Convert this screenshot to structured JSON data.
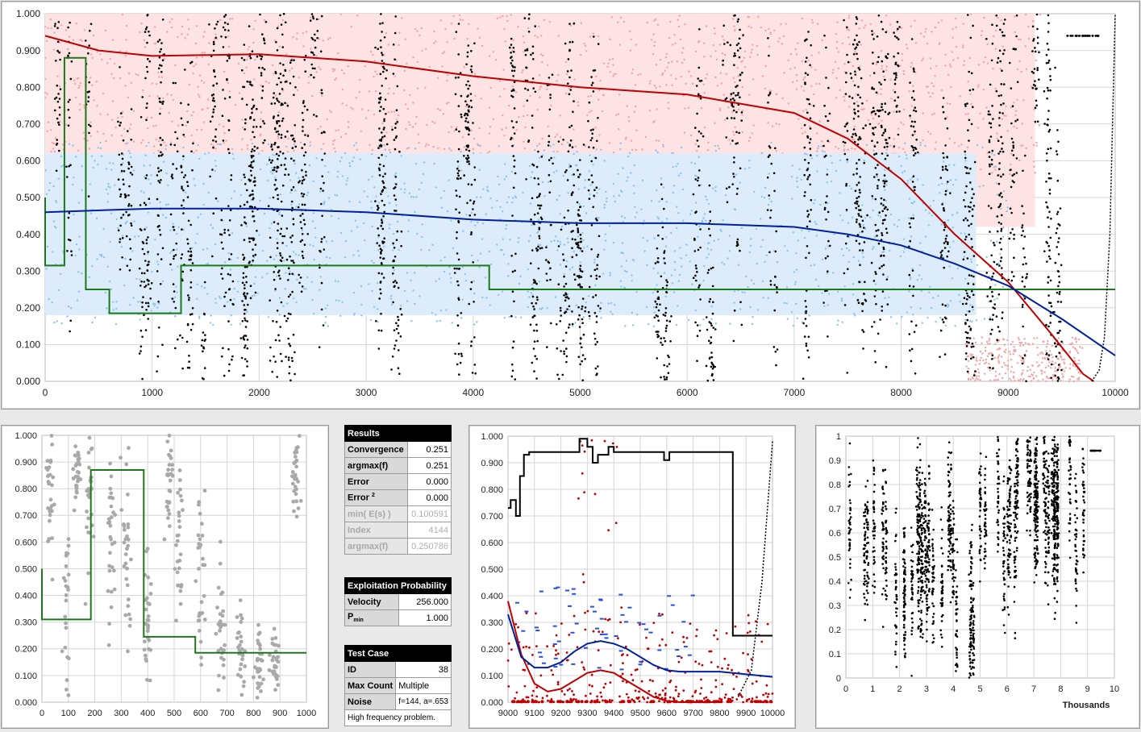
{
  "chart_data": [
    {
      "type": "scatter",
      "xlim": [
        0,
        10000
      ],
      "ylim": [
        0,
        1
      ],
      "x_ticks": [
        "0",
        "1000",
        "2000",
        "3000",
        "4000",
        "5000",
        "6000",
        "7000",
        "8000",
        "9000",
        "10000"
      ],
      "y_ticks": [
        "0.000",
        "0.100",
        "0.200",
        "0.300",
        "0.400",
        "0.500",
        "0.600",
        "0.700",
        "0.800",
        "0.900",
        "1.000"
      ],
      "series": [
        {
          "role": "red-trend",
          "color": "#c00000",
          "x": [
            0,
            500,
            1000,
            2000,
            3000,
            4000,
            5000,
            6000,
            7000,
            7500,
            8000,
            8500,
            9000,
            9400,
            9700,
            9800
          ],
          "y": [
            0.94,
            0.9,
            0.885,
            0.89,
            0.87,
            0.83,
            0.8,
            0.78,
            0.73,
            0.66,
            0.55,
            0.4,
            0.27,
            0.13,
            0.02,
            0
          ]
        },
        {
          "role": "blue-trend",
          "color": "#0020a0",
          "x": [
            0,
            1000,
            2000,
            3000,
            4000,
            5000,
            6000,
            7000,
            7500,
            8000,
            8500,
            9000,
            9500,
            10000
          ],
          "y": [
            0.46,
            0.47,
            0.47,
            0.46,
            0.44,
            0.43,
            0.43,
            0.42,
            0.4,
            0.37,
            0.32,
            0.26,
            0.17,
            0.07
          ]
        },
        {
          "role": "green-step",
          "color": "#1a7a1a",
          "x": [
            0,
            0,
            180,
            180,
            380,
            380,
            600,
            600,
            1270,
            1270,
            4150,
            4150,
            10000
          ],
          "y": [
            0.5,
            0.315,
            0.315,
            0.88,
            0.88,
            0.25,
            0.25,
            0.185,
            0.185,
            0.315,
            0.315,
            0.25,
            0.25
          ]
        },
        {
          "role": "black-ramp",
          "color": "#000000",
          "x": [
            9780,
            9850,
            9900,
            9950,
            10000
          ],
          "y": [
            0,
            0.03,
            0.12,
            0.4,
            1.0
          ]
        }
      ]
    },
    {
      "type": "scatter",
      "xlim": [
        0,
        1000
      ],
      "ylim": [
        0,
        1
      ],
      "x_ticks": [
        "0",
        "100",
        "200",
        "300",
        "400",
        "500",
        "600",
        "700",
        "800",
        "900",
        "1000"
      ],
      "y_ticks": [
        "0.000",
        "0.100",
        "0.200",
        "0.300",
        "0.400",
        "0.500",
        "0.600",
        "0.700",
        "0.800",
        "0.900",
        "1.000"
      ],
      "series": [
        {
          "role": "green-step",
          "color": "#1a7a1a",
          "x": [
            0,
            0,
            185,
            185,
            385,
            385,
            580,
            580,
            1000
          ],
          "y": [
            0.5,
            0.31,
            0.31,
            0.87,
            0.87,
            0.245,
            0.245,
            0.185,
            0.185
          ]
        }
      ]
    },
    {
      "type": "line",
      "xlim": [
        9000,
        10000
      ],
      "ylim": [
        0,
        1
      ],
      "x_ticks": [
        "9000",
        "9100",
        "9200",
        "9300",
        "9400",
        "9500",
        "9600",
        "9700",
        "9800",
        "9900",
        "10000"
      ],
      "y_ticks": [
        "0.000",
        "0.100",
        "0.200",
        "0.300",
        "0.400",
        "0.500",
        "0.600",
        "0.700",
        "0.800",
        "0.900",
        "1.000"
      ],
      "series": [
        {
          "role": "black-step",
          "color": "#000000",
          "x": [
            9000,
            9010,
            9010,
            9030,
            9030,
            9045,
            9045,
            9060,
            9060,
            9080,
            9080,
            9270,
            9270,
            9300,
            9300,
            9320,
            9320,
            9340,
            9340,
            9380,
            9380,
            9400,
            9400,
            9590,
            9590,
            9610,
            9610,
            9850,
            9850,
            10000
          ],
          "y": [
            0.73,
            0.73,
            0.76,
            0.76,
            0.7,
            0.7,
            0.85,
            0.85,
            0.93,
            0.93,
            0.94,
            0.94,
            0.99,
            0.99,
            0.96,
            0.96,
            0.9,
            0.9,
            0.93,
            0.93,
            0.96,
            0.96,
            0.94,
            0.94,
            0.91,
            0.91,
            0.94,
            0.94,
            0.25,
            0.25
          ]
        },
        {
          "role": "red-curve",
          "color": "#c00000",
          "x": [
            9000,
            9050,
            9100,
            9150,
            9200,
            9250,
            9300,
            9350,
            9400,
            9450,
            9500,
            9550,
            9600,
            9650,
            9700,
            9750,
            9800
          ],
          "y": [
            0.38,
            0.18,
            0.07,
            0.04,
            0.05,
            0.08,
            0.11,
            0.12,
            0.11,
            0.08,
            0.05,
            0.02,
            0.005,
            0,
            0,
            0,
            0
          ]
        },
        {
          "role": "blue-curve",
          "color": "#0020a0",
          "x": [
            9000,
            9050,
            9100,
            9150,
            9200,
            9250,
            9300,
            9350,
            9400,
            9450,
            9500,
            9550,
            9600,
            9650,
            9700,
            9800,
            9900,
            10000
          ],
          "y": [
            0.33,
            0.17,
            0.13,
            0.13,
            0.15,
            0.19,
            0.22,
            0.23,
            0.22,
            0.2,
            0.17,
            0.14,
            0.12,
            0.115,
            0.115,
            0.115,
            0.105,
            0.095
          ]
        },
        {
          "role": "black-ramp",
          "color": "#000000",
          "x": [
            9870,
            9920,
            9960,
            10000
          ],
          "y": [
            0.02,
            0.12,
            0.45,
            0.98
          ]
        }
      ]
    },
    {
      "type": "scatter",
      "xlim": [
        0,
        10
      ],
      "ylim": [
        0,
        1
      ],
      "xlabel": "Thousands",
      "x_ticks": [
        "0",
        "1",
        "2",
        "3",
        "4",
        "5",
        "6",
        "7",
        "8",
        "9",
        "10"
      ],
      "y_ticks": [
        "0",
        "0.1",
        "0.2",
        "0.3",
        "0.4",
        "0.5",
        "0.6",
        "0.7",
        "0.8",
        "0.9",
        "1"
      ],
      "series": []
    }
  ],
  "results": {
    "title": "Results",
    "rows": [
      {
        "label": "Convergence",
        "value": "0.251"
      },
      {
        "label": "argmax(f)",
        "value": "0.251"
      },
      {
        "label": "Error",
        "value": "0.000"
      },
      {
        "label": "Error",
        "sup": "2",
        "value": "0.000"
      },
      {
        "label": "min( E(s) )",
        "value": "0.100591"
      },
      {
        "label": "Index",
        "value": "4144"
      },
      {
        "label": "argmax(f)",
        "value": "0.250786"
      }
    ]
  },
  "exploitation": {
    "title": "Exploitation Probability",
    "velocity_label": "Velocity",
    "velocity": "256.000",
    "pmin_label": "P",
    "pmin_sub": "min",
    "pmin": "1.000"
  },
  "testcase": {
    "title": "Test Case",
    "id_label": "ID",
    "id": "38",
    "maxcount_label": "Max Count",
    "maxcount": "Multiple",
    "noise_label": "Noise",
    "noise": "f=144, a=.653",
    "note": "High frequency problem."
  }
}
